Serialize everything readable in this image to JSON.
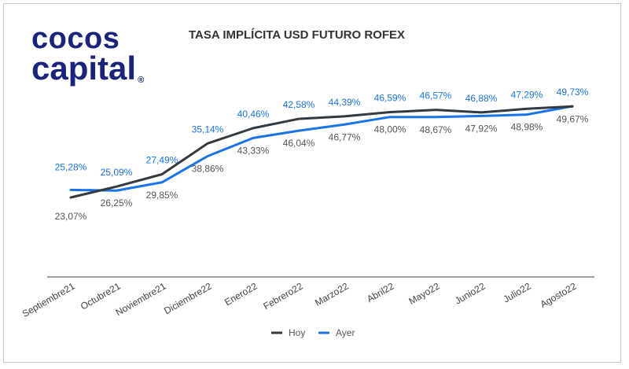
{
  "logo": {
    "line1": "cocos",
    "line2": "capital",
    "reg": "®"
  },
  "chart_data": {
    "type": "line",
    "title": "TASA IMPLÍCITA USD FUTURO ROFEX",
    "categories": [
      "Septiembre21",
      "Octubre21",
      "Noviembre21",
      "Diciembre22",
      "Enero22",
      "Febrero22",
      "Marzo22",
      "Abril22",
      "Mayo22",
      "Junio22",
      "Julio22",
      "Agosto22"
    ],
    "series": [
      {
        "name": "Hoy",
        "color": "#333a40",
        "values": [
          23.07,
          26.25,
          29.85,
          38.86,
          43.33,
          46.04,
          46.77,
          48.0,
          48.67,
          47.92,
          48.98,
          49.67
        ],
        "labels": [
          "23,07%",
          "26,25%",
          "29,85%",
          "38,86%",
          "43,33%",
          "46,04%",
          "46,77%",
          "48,00%",
          "48,67%",
          "47,92%",
          "48,98%",
          "49,67%"
        ]
      },
      {
        "name": "Ayer",
        "color": "#1a73e8",
        "values": [
          25.28,
          25.09,
          27.49,
          35.14,
          40.46,
          42.58,
          44.39,
          46.59,
          46.57,
          46.88,
          47.29,
          49.73
        ],
        "labels": [
          "25,28%",
          "25,09%",
          "27,49%",
          "35,14%",
          "40,46%",
          "42,58%",
          "44,39%",
          "46,59%",
          "46,57%",
          "46,88%",
          "47,29%",
          "49,73%"
        ]
      }
    ],
    "legend_position": "bottom",
    "grid": false
  }
}
